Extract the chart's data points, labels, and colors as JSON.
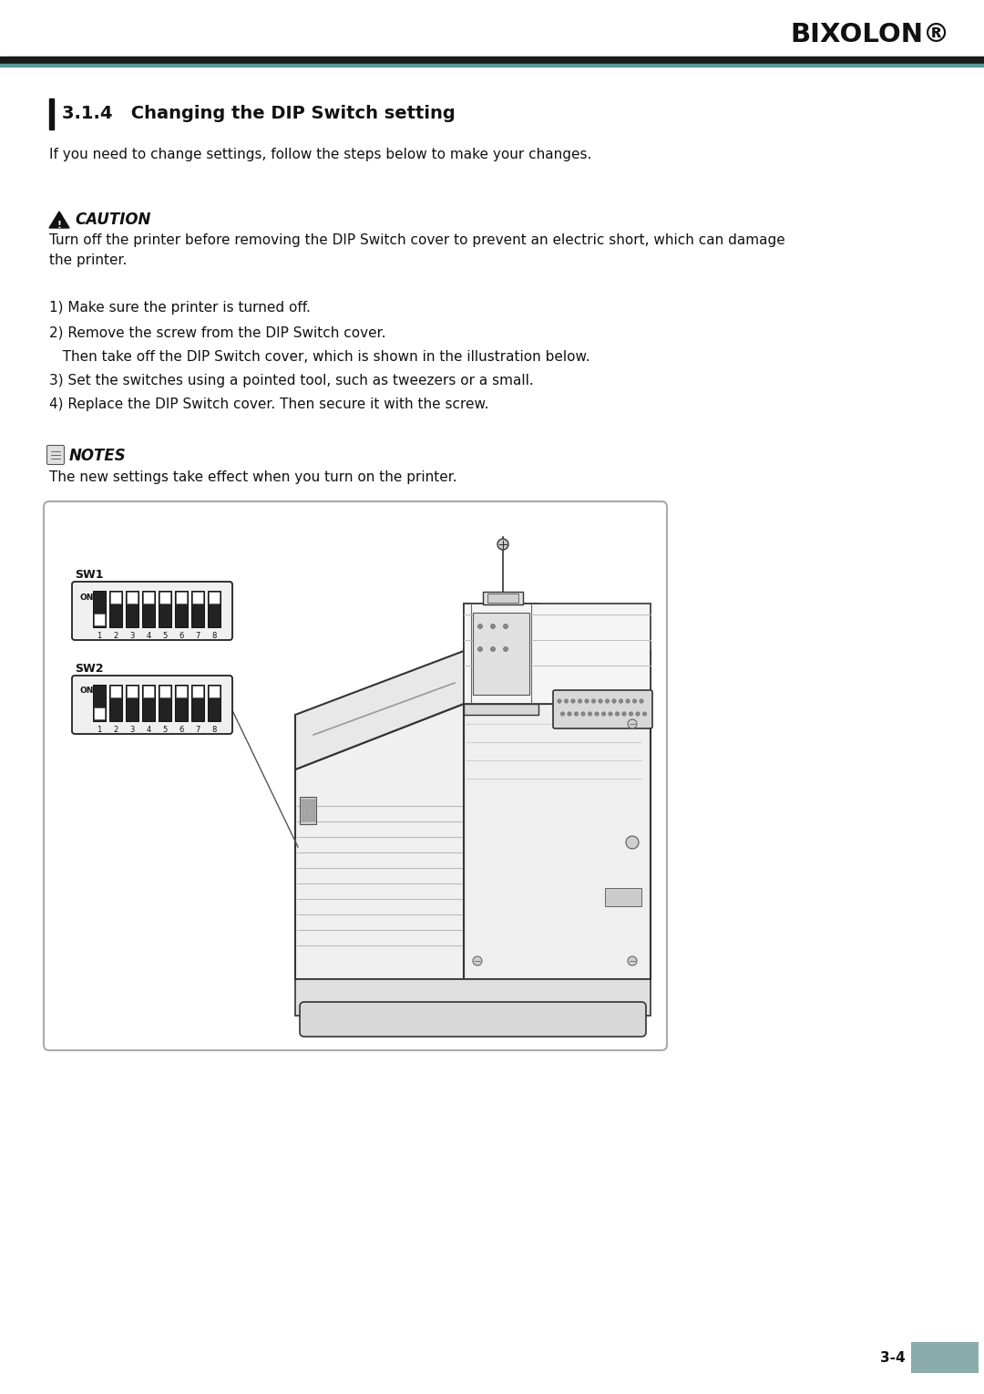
{
  "page_width": 10.8,
  "page_height": 15.29,
  "dpi": 100,
  "bg_color": "#ffffff",
  "header_bar_dark": "#1a1a1a",
  "header_bar_teal": "#5a9898",
  "bixolon_text": "BIXOLON®",
  "section_title": "3.1.4   Changing the DIP Switch setting",
  "intro_text": "If you need to change settings, follow the steps below to make your changes.",
  "caution_title": "CAUTION",
  "caution_line1": "Turn off the printer before removing the DIP Switch cover to prevent an electric short, which can damage",
  "caution_line2": "the printer.",
  "steps": [
    "1) Make sure the printer is turned off.",
    "2) Remove the screw from the DIP Switch cover.",
    "   Then take off the DIP Switch cover, which is shown in the illustration below.",
    "3) Set the switches using a pointed tool, such as tweezers or a small.",
    "4) Replace the DIP Switch cover. Then secure it with the screw."
  ],
  "notes_title": "NOTES",
  "notes_text": "The new settings take effect when you turn on the printer.",
  "page_number": "3-4",
  "footer_box_color": "#8aacac",
  "text_color": "#111111",
  "line_color": "#333333"
}
